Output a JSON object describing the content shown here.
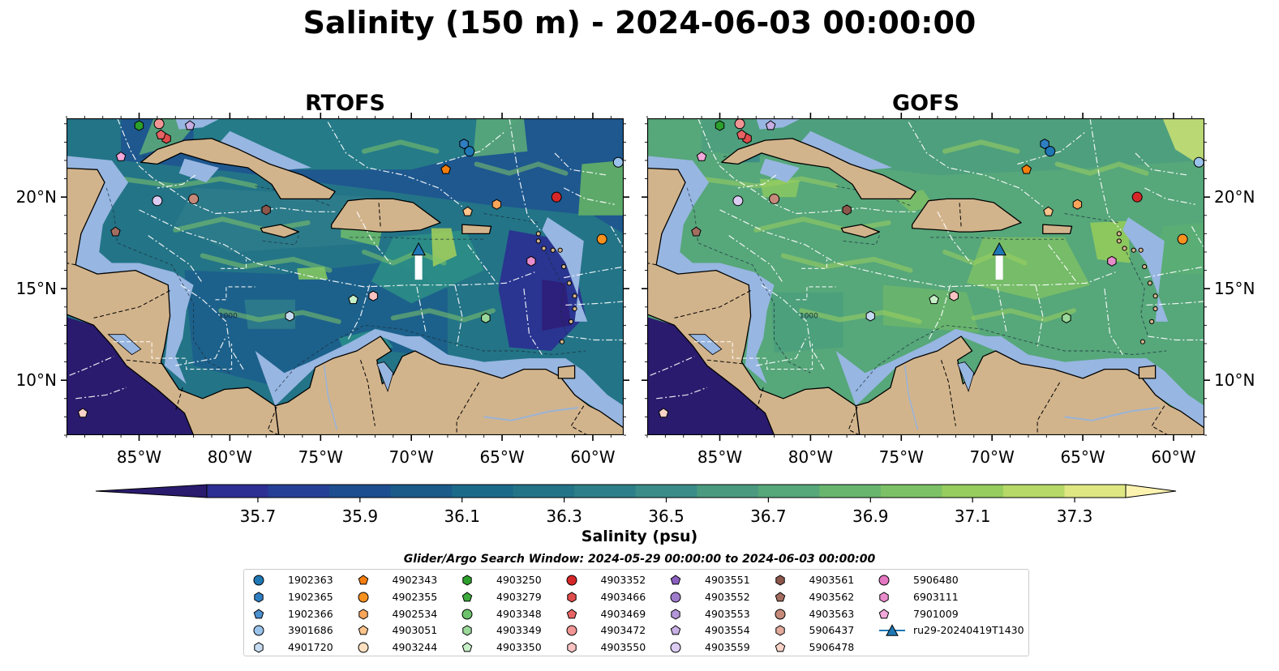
{
  "title": "Salinity (150 m) - 2024-06-03 00:00:00",
  "panels": [
    {
      "id": "rtofs",
      "title": "RTOFS"
    },
    {
      "id": "gofs",
      "title": "GOFS"
    }
  ],
  "map": {
    "lon_range": [
      -89,
      -58.3
    ],
    "lat_range": [
      7,
      24.3
    ],
    "lon_ticks": [
      -85,
      -80,
      -75,
      -70,
      -65,
      -60
    ],
    "lon_tick_labels": [
      "85°W",
      "80°W",
      "75°W",
      "70°W",
      "65°W",
      "60°W"
    ],
    "lat_ticks": [
      10,
      15,
      20
    ],
    "lat_tick_labels": [
      "10°N",
      "15°N",
      "20°N"
    ],
    "depth_contour_label": "1000",
    "colors": {
      "land": "#d2b48c",
      "shelf": "#97b6e1",
      "deep_low": "#2a1b6e"
    }
  },
  "colorbar": {
    "label": "Salinity (psu)",
    "vmin": 35.6,
    "vmax": 37.4,
    "ticks": [
      35.7,
      35.9,
      36.1,
      36.3,
      36.5,
      36.7,
      36.9,
      37.1,
      37.3
    ],
    "tick_labels": [
      "35.7",
      "35.9",
      "36.1",
      "36.3",
      "36.5",
      "36.7",
      "36.9",
      "37.1",
      "37.3"
    ],
    "colors": [
      "#2a1b6e",
      "#2e2f93",
      "#263f96",
      "#1d4e8f",
      "#1a5b8a",
      "#1c6a8a",
      "#237487",
      "#2d8089",
      "#3a8c88",
      "#4a9a80",
      "#56a77a",
      "#68b56e",
      "#7dc166",
      "#96cd5e",
      "#b6d967",
      "#dfe783",
      "#fdf3b0"
    ]
  },
  "search_window": "Glider/Argo Search Window: 2024-05-29 00:00:00 to 2024-06-03 00:00:00",
  "legend": [
    {
      "id": "1902363",
      "color": "#1f77b4",
      "marker": "circle"
    },
    {
      "id": "1902365",
      "color": "#2f7ec1",
      "marker": "hexagon"
    },
    {
      "id": "1902366",
      "color": "#4c90d0",
      "marker": "pentagon"
    },
    {
      "id": "3901686",
      "color": "#9ac3eb",
      "marker": "circle"
    },
    {
      "id": "4901720",
      "color": "#c6dbef",
      "marker": "hexagon"
    },
    {
      "id": "4902343",
      "color": "#f57e0e",
      "marker": "pentagon"
    },
    {
      "id": "4902355",
      "color": "#f7911f",
      "marker": "circle"
    },
    {
      "id": "4902534",
      "color": "#fba55a",
      "marker": "hexagon"
    },
    {
      "id": "4903051",
      "color": "#fdc48c",
      "marker": "pentagon"
    },
    {
      "id": "4903244",
      "color": "#fee0c1",
      "marker": "circle"
    },
    {
      "id": "4903250",
      "color": "#2ca02c",
      "marker": "hexagon"
    },
    {
      "id": "4903279",
      "color": "#3daa3d",
      "marker": "pentagon"
    },
    {
      "id": "4903348",
      "color": "#6cc36c",
      "marker": "circle"
    },
    {
      "id": "4903349",
      "color": "#9ad99a",
      "marker": "hexagon"
    },
    {
      "id": "4903350",
      "color": "#c7efc7",
      "marker": "pentagon"
    },
    {
      "id": "4903352",
      "color": "#d62728",
      "marker": "circle"
    },
    {
      "id": "4903466",
      "color": "#e04b4b",
      "marker": "hexagon"
    },
    {
      "id": "4903469",
      "color": "#e86464",
      "marker": "pentagon"
    },
    {
      "id": "4903472",
      "color": "#f29595",
      "marker": "circle"
    },
    {
      "id": "4903550",
      "color": "#fac3c3",
      "marker": "hexagon"
    },
    {
      "id": "4903551",
      "color": "#8b5fbf",
      "marker": "pentagon"
    },
    {
      "id": "4903552",
      "color": "#9f7ccb",
      "marker": "circle"
    },
    {
      "id": "4903553",
      "color": "#b396d8",
      "marker": "hexagon"
    },
    {
      "id": "4903554",
      "color": "#c8b0e6",
      "marker": "pentagon"
    },
    {
      "id": "4903559",
      "color": "#dccbf2",
      "marker": "circle"
    },
    {
      "id": "4903561",
      "color": "#8c564b",
      "marker": "hexagon"
    },
    {
      "id": "4903562",
      "color": "#a36d60",
      "marker": "pentagon"
    },
    {
      "id": "4903563",
      "color": "#c58a7a",
      "marker": "circle"
    },
    {
      "id": "5906437",
      "color": "#e3aa9c",
      "marker": "hexagon"
    },
    {
      "id": "5906478",
      "color": "#f7d2c6",
      "marker": "pentagon"
    },
    {
      "id": "5906480",
      "color": "#e377c2",
      "marker": "circle"
    },
    {
      "id": "6903111",
      "color": "#e88ccc",
      "marker": "hexagon"
    },
    {
      "id": "7901009",
      "color": "#f2a8da",
      "marker": "pentagon"
    },
    {
      "id": "ru29-20240419T1430",
      "color": "#1f77b4",
      "marker": "triangle"
    }
  ],
  "floats": [
    {
      "id": "1902363",
      "lon": -66.8,
      "lat": 22.5
    },
    {
      "id": "1902365",
      "lon": -67.1,
      "lat": 22.9
    },
    {
      "id": "3901686",
      "lon": -58.6,
      "lat": 21.9
    },
    {
      "id": "4901720",
      "lon": -76.7,
      "lat": 13.5
    },
    {
      "id": "4902343",
      "lon": -68.1,
      "lat": 21.5
    },
    {
      "id": "4902355",
      "lon": -59.5,
      "lat": 17.7
    },
    {
      "id": "4902534",
      "lon": -65.3,
      "lat": 19.6
    },
    {
      "id": "4903051",
      "lon": -66.9,
      "lat": 19.2
    },
    {
      "id": "4903250",
      "lon": -85.0,
      "lat": 23.9
    },
    {
      "id": "4903349",
      "lon": -65.9,
      "lat": 13.4
    },
    {
      "id": "4903350",
      "lon": -73.2,
      "lat": 14.4
    },
    {
      "id": "4903352",
      "lon": -62.0,
      "lat": 20.0
    },
    {
      "id": "4903466",
      "lon": -83.5,
      "lat": 23.2
    },
    {
      "id": "4903469",
      "lon": -83.8,
      "lat": 23.4
    },
    {
      "id": "4903472",
      "lon": -83.9,
      "lat": 24.0
    },
    {
      "id": "4903550",
      "lon": -72.1,
      "lat": 14.6
    },
    {
      "id": "4903554",
      "lon": -82.2,
      "lat": 23.9
    },
    {
      "id": "4903559",
      "lon": -84.0,
      "lat": 19.8
    },
    {
      "id": "4903561",
      "lon": -78.0,
      "lat": 19.3
    },
    {
      "id": "4903562",
      "lon": -86.3,
      "lat": 18.1
    },
    {
      "id": "4903563",
      "lon": -82.0,
      "lat": 19.9
    },
    {
      "id": "5906478",
      "lon": -88.1,
      "lat": 8.2
    },
    {
      "id": "6903111",
      "lon": -63.4,
      "lat": 16.5
    },
    {
      "id": "7901009",
      "lon": -86.0,
      "lat": 22.2
    }
  ],
  "glider": {
    "id": "ru29-20240419T1430",
    "lon": -69.6,
    "lat": 17.1,
    "track_start_lat": 15.8
  }
}
